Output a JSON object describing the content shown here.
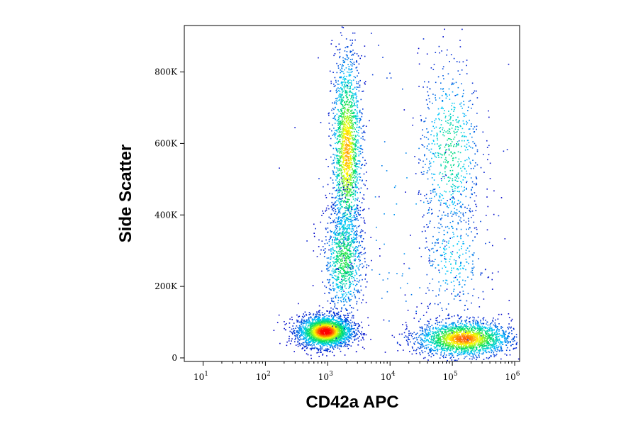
{
  "chart_data": {
    "type": "scatter",
    "title": "",
    "xlabel": "CD42a APC",
    "ylabel": "Side Scatter",
    "x_scale": "log",
    "xlim": [
      5,
      1200000
    ],
    "ylim": [
      -10000,
      930000
    ],
    "x_ticks": [
      {
        "value": 10,
        "base": "10",
        "exp": "1"
      },
      {
        "value": 100,
        "base": "10",
        "exp": "2"
      },
      {
        "value": 1000,
        "base": "10",
        "exp": "3"
      },
      {
        "value": 10000,
        "base": "10",
        "exp": "4"
      },
      {
        "value": 100000,
        "base": "10",
        "exp": "5"
      },
      {
        "value": 1000000,
        "base": "10",
        "exp": "6"
      }
    ],
    "y_ticks": [
      {
        "value": 0,
        "label": "0"
      },
      {
        "value": 200000,
        "label": "200K"
      },
      {
        "value": 400000,
        "label": "400K"
      },
      {
        "value": 600000,
        "label": "600K"
      },
      {
        "value": 800000,
        "label": "800K"
      }
    ],
    "grid": false,
    "legend": "none",
    "coloring": "density (blue low → green → yellow → red high)",
    "populations": [
      {
        "x": 900,
        "y": 75000,
        "x_spread_decades": 0.22,
        "y_spread": 22000,
        "relative_density": 1.0
      },
      {
        "x": 2000,
        "y": 580000,
        "x_spread_decades": 0.12,
        "y_spread": 140000,
        "relative_density": 0.7
      },
      {
        "x": 1800,
        "y": 280000,
        "x_spread_decades": 0.16,
        "y_spread": 80000,
        "relative_density": 0.35
      },
      {
        "x": 150000,
        "y": 55000,
        "x_spread_decades": 0.38,
        "y_spread": 25000,
        "relative_density": 0.8
      },
      {
        "x": 90000,
        "y": 580000,
        "x_spread_decades": 0.25,
        "y_spread": 130000,
        "relative_density": 0.25
      },
      {
        "x": 100000,
        "y": 280000,
        "x_spread_decades": 0.28,
        "y_spread": 90000,
        "relative_density": 0.12
      },
      {
        "x": 20000,
        "y": 400000,
        "x_spread_decades": 0.9,
        "y_spread": 300000,
        "relative_density": 0.06
      }
    ],
    "colors": {
      "low": "#0000c8",
      "mid_low": "#00c8ff",
      "mid": "#00e060",
      "mid_high": "#ffff00",
      "high": "#ff0000"
    }
  }
}
